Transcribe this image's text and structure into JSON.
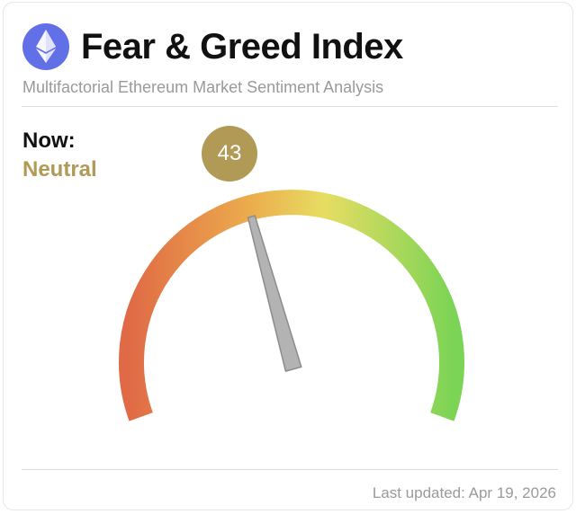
{
  "header": {
    "title": "Fear & Greed Index",
    "subtitle": "Multifactorial Ethereum Market Sentiment Analysis",
    "logo_icon": "ethereum-icon"
  },
  "status": {
    "now_label": "Now:",
    "sentiment": "Neutral",
    "value": "43",
    "accent_color": "#b09a55"
  },
  "gauge": {
    "min": 0,
    "max": 100,
    "value": 43,
    "colors": [
      "#e06a45",
      "#ecae4d",
      "#e7dd63",
      "#7bd455"
    ]
  },
  "footer": {
    "last_updated": "Last updated: Apr 19, 2026"
  }
}
